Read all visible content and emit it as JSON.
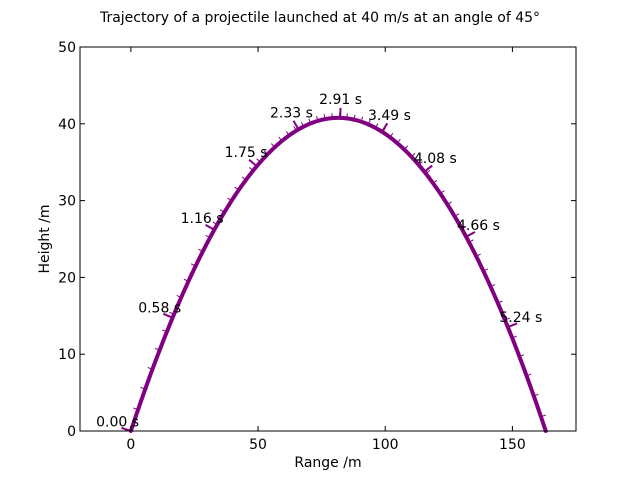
{
  "chart_data": {
    "type": "line",
    "title": "Trajectory of a projectile launched at 40 m/s at an angle of 45°",
    "xlabel": "Range /m",
    "ylabel": "Height /m",
    "xlim": [
      -20,
      175
    ],
    "ylim": [
      0,
      50
    ],
    "xticks": [
      0,
      50,
      100,
      150
    ],
    "yticks": [
      0,
      10,
      20,
      30,
      40,
      50
    ],
    "grid": false,
    "colors": {
      "curve": "#800080",
      "axes": "#000000"
    },
    "physics": {
      "speed": 40,
      "angle_deg": 45,
      "g": 9.81
    },
    "series": [
      {
        "x": [
          0,
          8.2,
          16.4,
          24.6,
          32.8,
          41.0,
          49.2,
          57.4,
          65.6,
          73.8,
          82.0,
          90.2,
          98.4,
          106.6,
          114.8,
          123.0,
          131.2,
          139.4,
          147.6,
          155.8,
          163.1
        ],
        "y": [
          0,
          7.88,
          14.93,
          21.15,
          26.54,
          31.1,
          34.83,
          37.73,
          39.8,
          41.04,
          41.46,
          41.04,
          39.8,
          37.73,
          34.83,
          31.1,
          26.54,
          21.15,
          14.93,
          7.88,
          0
        ]
      }
    ],
    "time_markers": [
      {
        "label": "0.00 s",
        "x": 0.0,
        "y": 0.0
      },
      {
        "label": "0.58 s",
        "x": 16.4,
        "y": 14.75
      },
      {
        "label": "1.16 s",
        "x": 32.81,
        "y": 26.21
      },
      {
        "label": "1.75 s",
        "x": 49.5,
        "y": 34.47
      },
      {
        "label": "2.33 s",
        "x": 65.9,
        "y": 39.27
      },
      {
        "label": "2.91 s",
        "x": 82.31,
        "y": 40.78
      },
      {
        "label": "3.49 s",
        "x": 98.71,
        "y": 38.97
      },
      {
        "label": "4.08 s",
        "x": 115.4,
        "y": 33.74
      },
      {
        "label": "4.66 s",
        "x": 131.81,
        "y": 25.29
      },
      {
        "label": "5.24 s",
        "x": 148.21,
        "y": 13.53
      }
    ]
  }
}
